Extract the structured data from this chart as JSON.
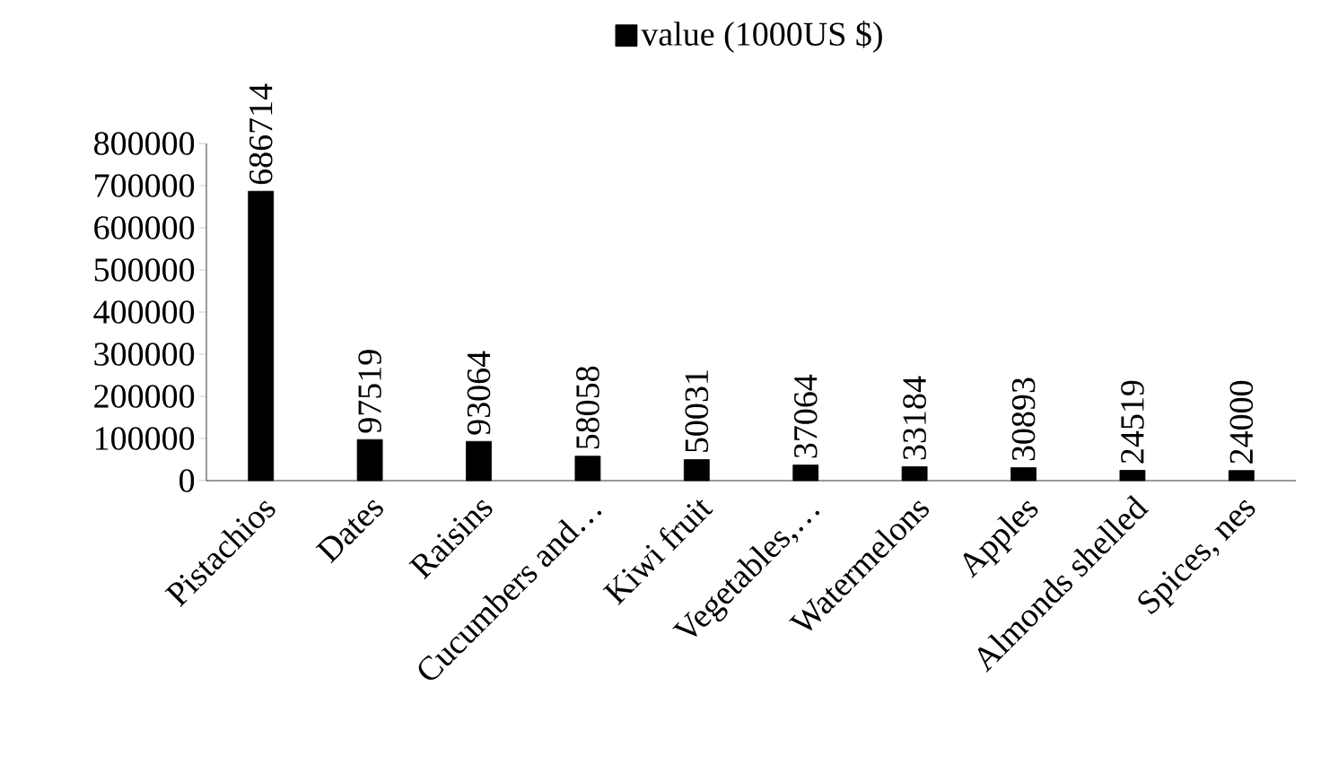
{
  "chart_data": {
    "type": "bar",
    "categories": [
      "Pistachios",
      "Dates",
      "Raisins",
      "Cucumbers and…",
      "Kiwi fruit",
      "Vegetables,…",
      "Watermelons",
      "Apples",
      "Almonds shelled",
      "Spices, nes"
    ],
    "series": [
      {
        "name": "value (1000US $)",
        "color": "#000000",
        "values": [
          686714,
          97519,
          93064,
          58058,
          50031,
          37064,
          33184,
          30893,
          24519,
          24000
        ]
      }
    ],
    "ylim": [
      0,
      800000
    ],
    "yticks": [
      0,
      100000,
      200000,
      300000,
      400000,
      500000,
      600000,
      700000,
      800000
    ],
    "data_labels": true,
    "legend": "top",
    "grid": false
  }
}
